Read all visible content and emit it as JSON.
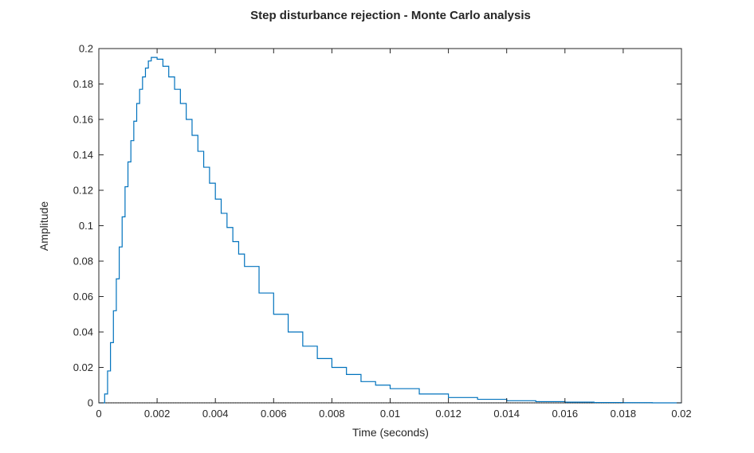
{
  "chart_data": {
    "type": "line",
    "title": "Step disturbance rejection - Monte Carlo analysis",
    "xlabel": "Time (seconds)",
    "ylabel": "Amplitude",
    "xlim": [
      0,
      0.02
    ],
    "ylim": [
      0,
      0.2
    ],
    "x_ticks": [
      0,
      0.002,
      0.004,
      0.006,
      0.008,
      0.01,
      0.012,
      0.014,
      0.016,
      0.018,
      0.02
    ],
    "x_tick_labels": [
      "0",
      "0.002",
      "0.004",
      "0.006",
      "0.008",
      "0.01",
      "0.012",
      "0.014",
      "0.016",
      "0.018",
      "0.02"
    ],
    "y_ticks": [
      0,
      0.02,
      0.04,
      0.06,
      0.08,
      0.1,
      0.12,
      0.14,
      0.16,
      0.18,
      0.2
    ],
    "y_tick_labels": [
      "0",
      "0.02",
      "0.04",
      "0.06",
      "0.08",
      "0.1",
      "0.12",
      "0.14",
      "0.16",
      "0.18",
      "0.2"
    ],
    "grid": false,
    "box": true,
    "line_style": "stairs",
    "series": [
      {
        "color": "#0072BD",
        "x": [
          0,
          0.0001,
          0.0002,
          0.0003,
          0.0004,
          0.0005,
          0.0006,
          0.0007,
          0.0008,
          0.0009,
          0.001,
          0.0011,
          0.0012,
          0.0013,
          0.0014,
          0.0015,
          0.0016,
          0.0017,
          0.0018,
          0.0019,
          0.002,
          0.0022,
          0.0024,
          0.0026,
          0.0028,
          0.003,
          0.0032,
          0.0034,
          0.0036,
          0.0038,
          0.004,
          0.0042,
          0.0044,
          0.0046,
          0.0048,
          0.005,
          0.0055,
          0.006,
          0.0065,
          0.007,
          0.0075,
          0.008,
          0.0085,
          0.009,
          0.0095,
          0.01,
          0.011,
          0.012,
          0.013,
          0.014,
          0.015,
          0.016,
          0.017,
          0.018,
          0.019,
          0.02
        ],
        "y": [
          0,
          0.0,
          0.005,
          0.018,
          0.034,
          0.052,
          0.07,
          0.088,
          0.105,
          0.122,
          0.136,
          0.148,
          0.159,
          0.169,
          0.177,
          0.184,
          0.189,
          0.193,
          0.195,
          0.195,
          0.194,
          0.19,
          0.184,
          0.177,
          0.169,
          0.16,
          0.151,
          0.142,
          0.133,
          0.124,
          0.115,
          0.107,
          0.099,
          0.091,
          0.084,
          0.077,
          0.062,
          0.05,
          0.04,
          0.032,
          0.025,
          0.02,
          0.016,
          0.012,
          0.01,
          0.008,
          0.005,
          0.003,
          0.002,
          0.0012,
          0.0007,
          0.0004,
          0.0002,
          0.0001,
          0.0,
          0.0
        ]
      }
    ],
    "baseline": {
      "y": 0,
      "style": "dotted",
      "color": "#000000"
    }
  }
}
